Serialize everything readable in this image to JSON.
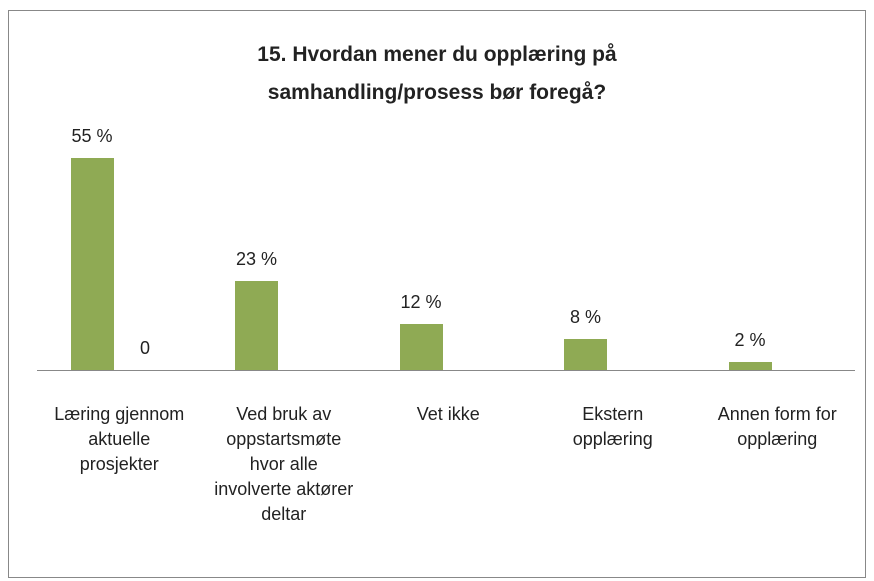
{
  "chart_data": {
    "type": "bar",
    "title": "15. Hvordan mener du opplæring på samhandling/prosess bør foregå?",
    "categories": [
      "Læring gjennom aktuelle prosjekter",
      "Ved bruk av oppstartsmøte hvor alle involverte aktører deltar",
      "Vet ikke",
      "Ekstern opplæring",
      "Annen form for opplæring"
    ],
    "series": [
      {
        "color": "#8faa54",
        "values": [
          55,
          23,
          12,
          8,
          2
        ],
        "value_labels": [
          "55 %",
          "23 %",
          "12 %",
          "8 %",
          "2 %"
        ]
      },
      {
        "color": "#c0504d",
        "values": [
          0,
          null,
          null,
          null,
          null
        ]
      }
    ],
    "ylim": [
      0,
      60
    ]
  }
}
